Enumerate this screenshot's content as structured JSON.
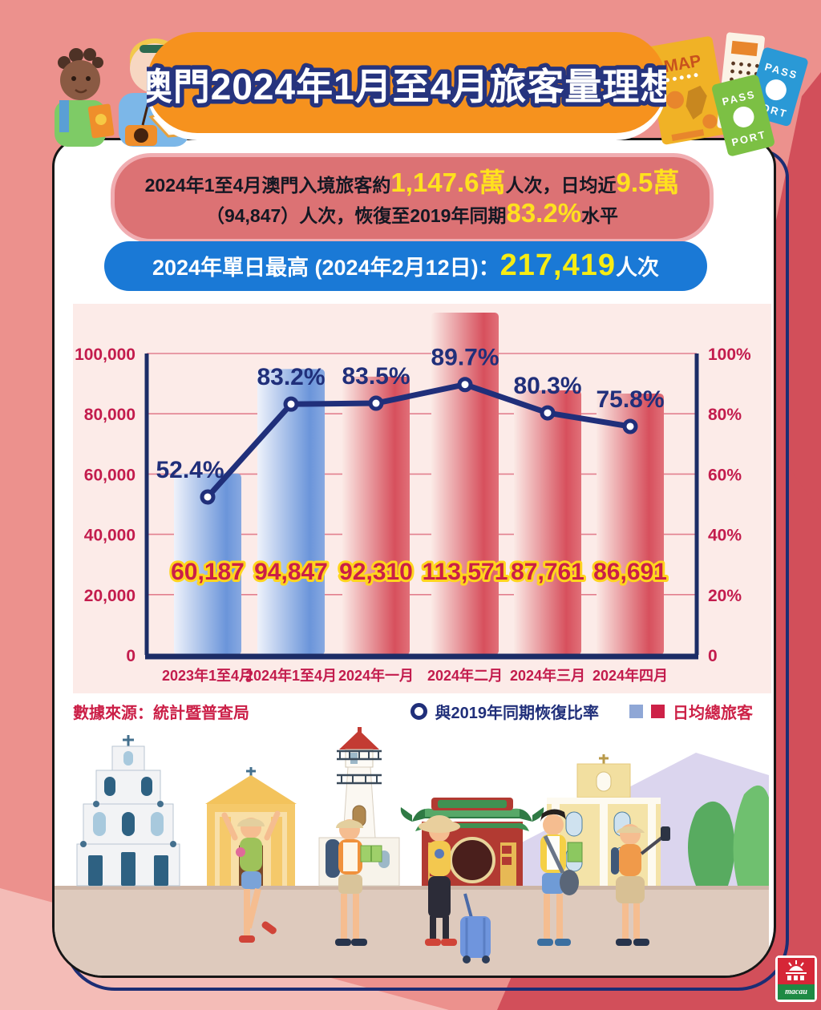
{
  "page": {
    "title": "澳門2024年1月至4月旅客量理想"
  },
  "summary_banner": {
    "line1": [
      {
        "text": "2024年1至4月澳門入境旅客約",
        "style": "dark"
      },
      {
        "text": "1,147.6萬",
        "style": "hl"
      },
      {
        "text": "人次，日均近",
        "style": "dark"
      },
      {
        "text": "9.5萬",
        "style": "hl"
      }
    ],
    "line2": [
      {
        "text": "（94,847）人次，恢復至2019年同期",
        "style": "dark"
      },
      {
        "text": "83.2%",
        "style": "hl"
      },
      {
        "text": "水平",
        "style": "dark"
      }
    ]
  },
  "peak_banner": {
    "segments": [
      {
        "text": "2024年單日最高 (2024年2月12日)：",
        "style": "light"
      },
      {
        "text": "217,419",
        "style": "hl2"
      },
      {
        "text": "人次",
        "style": "light"
      }
    ]
  },
  "chart_data": {
    "type": "bar+line",
    "categories": [
      "2023年1至4月",
      "2024年1至4月",
      "2024年一月",
      "2024年二月",
      "2024年三月",
      "2024年四月"
    ],
    "series": [
      {
        "name": "日均總旅客",
        "type": "bar",
        "values": [
          60187,
          94847,
          92310,
          113571,
          87761,
          86691
        ],
        "labels": [
          "60,187",
          "94,847",
          "92,310",
          "113,571",
          "87,761",
          "86,691"
        ],
        "bar_colors": [
          "blue",
          "blue",
          "red",
          "red",
          "red",
          "red"
        ]
      },
      {
        "name": "與2019年同期恢復比率",
        "type": "line",
        "values": [
          52.4,
          83.2,
          83.5,
          89.7,
          80.3,
          75.8
        ],
        "labels": [
          "52.4%",
          "83.2%",
          "83.5%",
          "89.7%",
          "80.3%",
          "75.8%"
        ]
      }
    ],
    "left_axis": {
      "min": 0,
      "max": 100000,
      "ticks": [
        "100,000",
        "80,000",
        "60,000",
        "40,000",
        "20,000",
        "0"
      ]
    },
    "right_axis": {
      "min": 0,
      "max": 100,
      "ticks": [
        "100%",
        "80%",
        "60%",
        "40%",
        "20%",
        "0"
      ]
    },
    "grid": true,
    "legend_position": "bottom-right",
    "colors": {
      "bar_blue": "#6b95da",
      "bar_red": "#d7505d",
      "line_navy": "#202f7a",
      "axis_navy": "#1c2c66",
      "tick_crimson": "#c31c4d",
      "value_label_fill": "#cb1f47",
      "value_label_stroke": "#ffd51e",
      "gridline": "#e2808f",
      "panel_bg": "#fcebe8"
    }
  },
  "source": "數據來源：統計暨普查局",
  "legend": {
    "line_label": "與2019年同期恢復比率",
    "bar_label": "日均總旅客"
  },
  "decor": {
    "map_label": "MAP",
    "passport_word_top": "PASS",
    "passport_word_bottom": "PORT"
  },
  "logo": {
    "wordmark": "macau"
  },
  "theme_colors": {
    "background_salmon": "#ec918d",
    "background_dark_red": "#d24f5a",
    "background_light_pink": "#f4bcb7",
    "title_orange": "#f6921e",
    "summary_red": "#dc7274",
    "peak_blue": "#1a79d6",
    "highlight_yellow": "#ffe11e"
  }
}
